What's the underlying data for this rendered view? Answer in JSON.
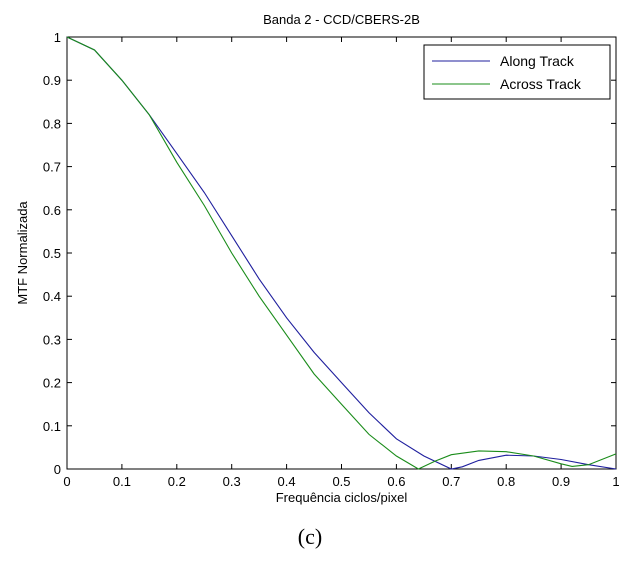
{
  "figure": {
    "caption": "(c)"
  },
  "chart_data": {
    "type": "line",
    "title": "Banda 2 - CCD/CBERS-2B",
    "xlabel": "Frequência ciclos/pixel",
    "ylabel": "MTF Normalizada",
    "xlim": [
      0,
      1
    ],
    "ylim": [
      0,
      1
    ],
    "xticks": [
      "0",
      "0.1",
      "0.2",
      "0.3",
      "0.4",
      "0.5",
      "0.6",
      "0.7",
      "0.8",
      "0.9",
      "1"
    ],
    "yticks": [
      "0",
      "0.1",
      "0.2",
      "0.3",
      "0.4",
      "0.5",
      "0.6",
      "0.7",
      "0.8",
      "0.9",
      "1"
    ],
    "grid": false,
    "legend_position": "top-right",
    "series": [
      {
        "name": "Along Track",
        "color": "#1f1f9e",
        "x": [
          0,
          0.05,
          0.1,
          0.15,
          0.2,
          0.25,
          0.3,
          0.35,
          0.4,
          0.45,
          0.5,
          0.55,
          0.6,
          0.65,
          0.7,
          0.72,
          0.75,
          0.8,
          0.85,
          0.9,
          0.95,
          1.0
        ],
        "y": [
          1.0,
          0.97,
          0.9,
          0.82,
          0.73,
          0.64,
          0.54,
          0.44,
          0.35,
          0.27,
          0.2,
          0.13,
          0.07,
          0.03,
          0.0,
          0.005,
          0.02,
          0.032,
          0.03,
          0.022,
          0.01,
          0.0
        ]
      },
      {
        "name": "Across Track",
        "color": "#1a8c1a",
        "x": [
          0,
          0.05,
          0.1,
          0.15,
          0.2,
          0.25,
          0.3,
          0.35,
          0.4,
          0.45,
          0.5,
          0.55,
          0.6,
          0.64,
          0.67,
          0.7,
          0.75,
          0.8,
          0.85,
          0.9,
          0.92,
          0.95,
          1.0
        ],
        "y": [
          1.0,
          0.97,
          0.9,
          0.82,
          0.71,
          0.61,
          0.5,
          0.4,
          0.31,
          0.22,
          0.15,
          0.08,
          0.03,
          0.0,
          0.018,
          0.033,
          0.042,
          0.04,
          0.03,
          0.012,
          0.006,
          0.01,
          0.035
        ]
      }
    ]
  }
}
